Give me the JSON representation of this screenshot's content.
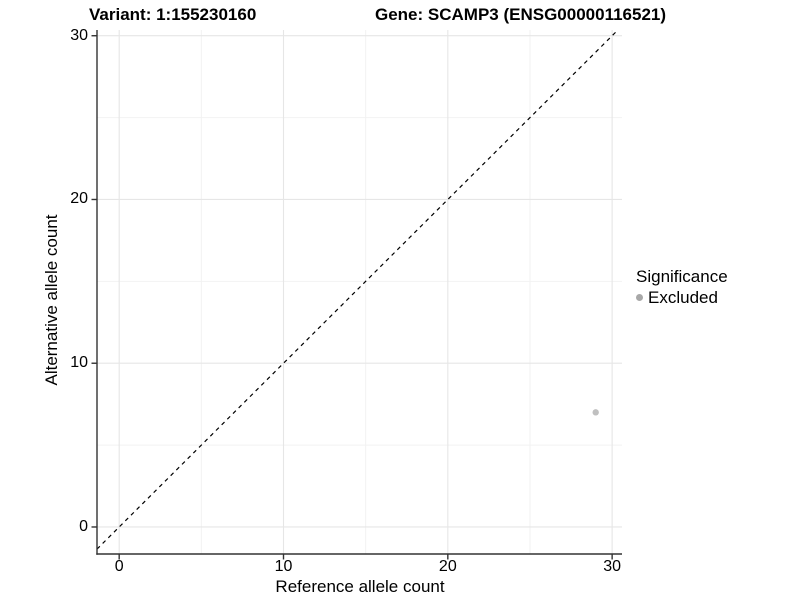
{
  "title": {
    "variant": "Variant: 1:155230160",
    "gene": "Gene: SCAMP3 (ENSG00000116521)"
  },
  "chart_data": {
    "type": "scatter",
    "title_left": "Variant: 1:155230160",
    "title_right": "Gene: SCAMP3 (ENSG00000116521)",
    "xlabel": "Reference allele count",
    "ylabel": "Alternative allele count",
    "xlim": [
      -1.35,
      30.6
    ],
    "ylim": [
      -1.65,
      30.35
    ],
    "x_major_ticks": [
      0,
      10,
      20,
      30
    ],
    "y_major_ticks": [
      0,
      10,
      20,
      30
    ],
    "x_minor_ticks": [
      5,
      15,
      25
    ],
    "y_minor_ticks": [
      5,
      15,
      25
    ],
    "grid": true,
    "identity_line": {
      "style": "dashed",
      "color": "#000000"
    },
    "points": [
      {
        "x": 29,
        "y": 7,
        "significance": "Excluded",
        "color": "#c0c0c0"
      }
    ],
    "legend": {
      "title": "Significance",
      "position": "right",
      "items": [
        {
          "label": "Excluded",
          "color": "#a8a8a8"
        }
      ]
    }
  },
  "colors": {
    "background": "#ffffff",
    "grid_major": "#e6e6e6",
    "grid_minor": "#f2f2f2",
    "axis_line": "#333333",
    "tick_mark": "#333333",
    "text": "#000000"
  }
}
